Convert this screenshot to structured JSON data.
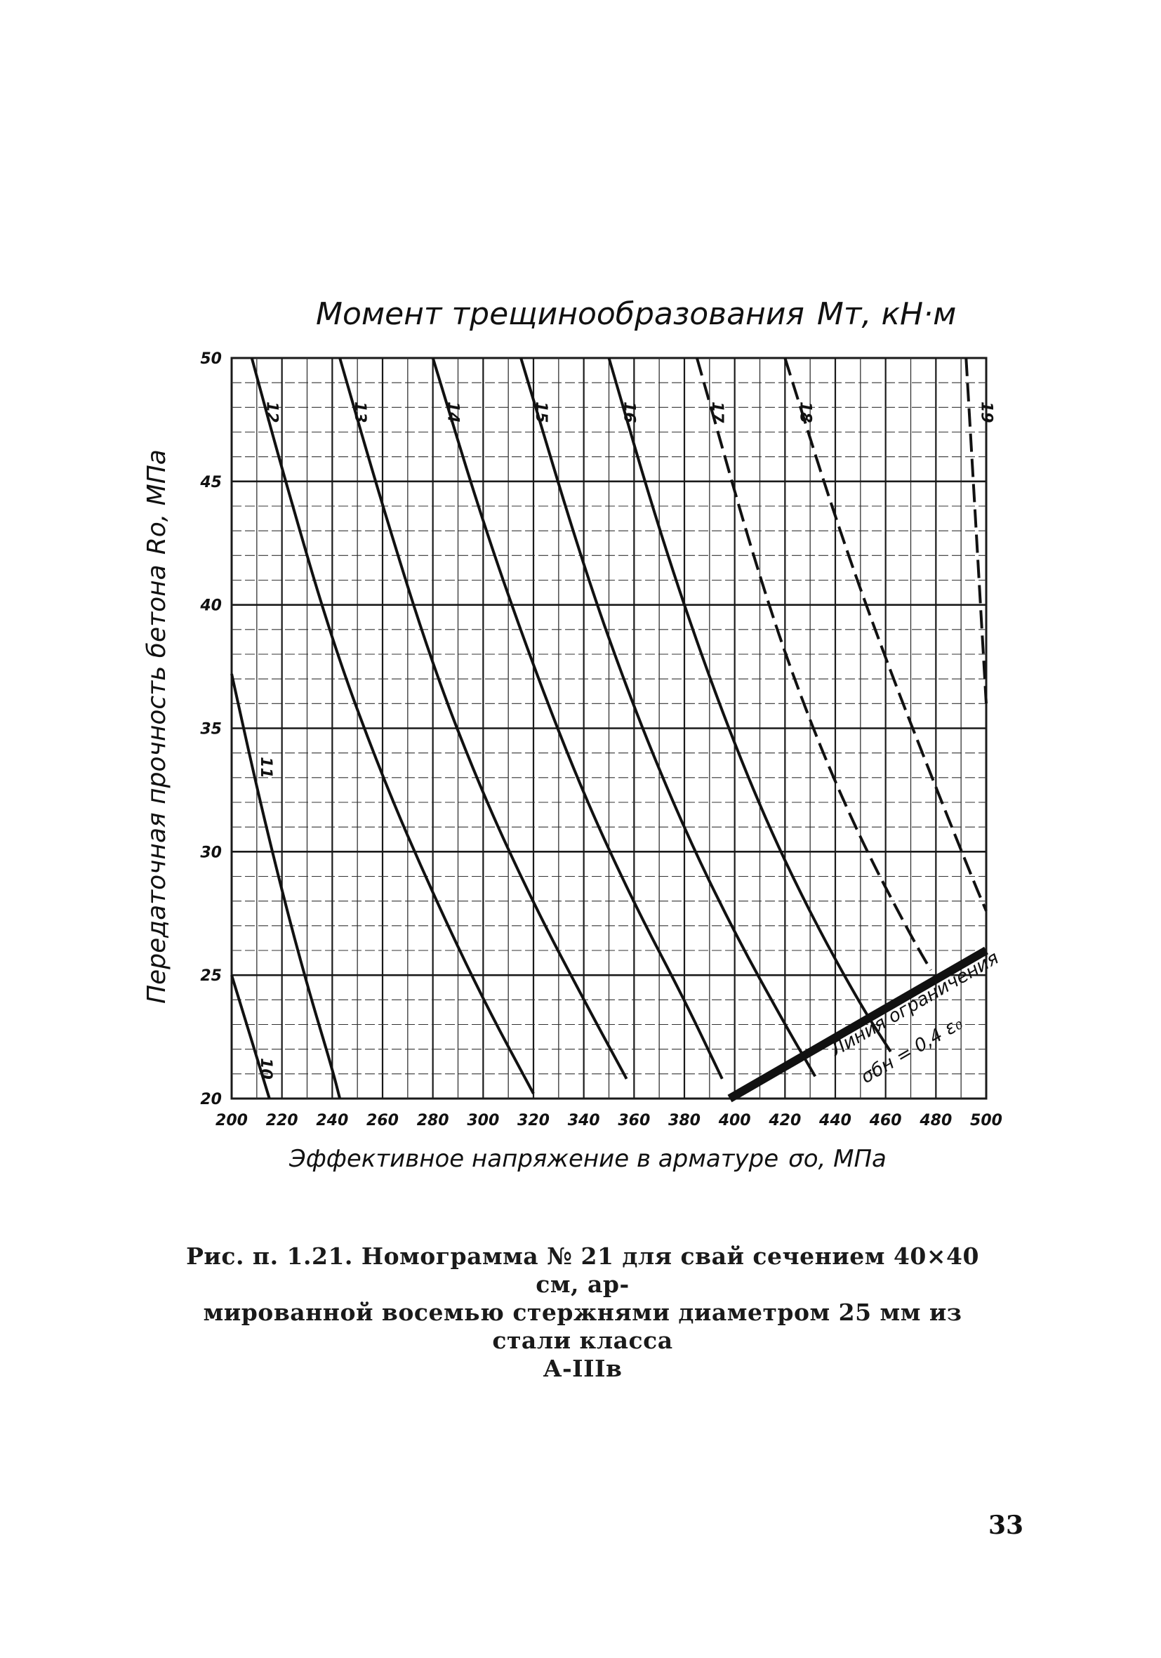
{
  "chart_data": {
    "type": "line",
    "title": "Момент трещинообразования",
    "title_symbol": "Mт, кН·м",
    "xlabel": "Эффективное напряжение в арматуре",
    "xlabel_symbol": "σo, МПа",
    "ylabel": "Передаточная прочность бетона",
    "ylabel_symbol": "Ro, МПа",
    "xlim": [
      200,
      500
    ],
    "ylim": [
      20,
      50
    ],
    "x_ticks": [
      "200",
      "220",
      "240",
      "260",
      "280",
      "300",
      "320",
      "340",
      "360",
      "380",
      "400",
      "420",
      "440",
      "460",
      "480",
      "500"
    ],
    "y_ticks": [
      "20",
      "25",
      "30",
      "35",
      "40",
      "45",
      "50"
    ],
    "grid": true,
    "series": [
      {
        "name": "10",
        "style": "solid",
        "points": [
          [
            200,
            25
          ],
          [
            215,
            20
          ]
        ]
      },
      {
        "name": "11",
        "style": "solid",
        "points": [
          [
            200,
            37.2
          ],
          [
            210,
            32.6
          ],
          [
            220,
            28.4
          ],
          [
            230,
            24.6
          ],
          [
            240,
            21.2
          ],
          [
            243,
            20
          ]
        ]
      },
      {
        "name": "12",
        "style": "solid",
        "points": [
          [
            208,
            50
          ],
          [
            220,
            45.5
          ],
          [
            240,
            38.5
          ],
          [
            260,
            33.0
          ],
          [
            280,
            28.3
          ],
          [
            300,
            24.0
          ],
          [
            320,
            20.2
          ]
        ]
      },
      {
        "name": "13",
        "style": "solid",
        "points": [
          [
            243,
            50
          ],
          [
            260,
            44.0
          ],
          [
            280,
            37.5
          ],
          [
            300,
            32.3
          ],
          [
            320,
            27.9
          ],
          [
            340,
            24.0
          ],
          [
            357,
            20.8
          ]
        ]
      },
      {
        "name": "14",
        "style": "solid",
        "points": [
          [
            280,
            50
          ],
          [
            300,
            43.3
          ],
          [
            320,
            37.5
          ],
          [
            340,
            32.3
          ],
          [
            360,
            27.9
          ],
          [
            380,
            24.0
          ],
          [
            395,
            20.8
          ]
        ]
      },
      {
        "name": "15",
        "style": "solid",
        "points": [
          [
            315,
            50
          ],
          [
            340,
            41.5
          ],
          [
            360,
            35.8
          ],
          [
            380,
            30.9
          ],
          [
            400,
            26.7
          ],
          [
            420,
            23.0
          ],
          [
            432,
            20.9
          ]
        ]
      },
      {
        "name": "16",
        "style": "solid",
        "points": [
          [
            350,
            50
          ],
          [
            370,
            43.0
          ],
          [
            390,
            37.0
          ],
          [
            410,
            31.8
          ],
          [
            430,
            27.5
          ],
          [
            450,
            23.8
          ],
          [
            462,
            21.9
          ]
        ]
      },
      {
        "name": "17",
        "style": "dashed",
        "points": [
          [
            385,
            50
          ],
          [
            410,
            41.0
          ],
          [
            430,
            35.2
          ],
          [
            450,
            30.5
          ],
          [
            470,
            26.6
          ],
          [
            478,
            25.2
          ]
        ]
      },
      {
        "name": "18",
        "style": "dashed",
        "points": [
          [
            420,
            50
          ],
          [
            440,
            43.5
          ],
          [
            460,
            37.8
          ],
          [
            480,
            32.6
          ],
          [
            495,
            28.8
          ],
          [
            500,
            27.6
          ]
        ]
      },
      {
        "name": "19",
        "style": "dashed",
        "points": [
          [
            492,
            50
          ],
          [
            500,
            36.0
          ]
        ]
      }
    ],
    "limit_line": {
      "name": "Линия ограничения",
      "formula": "σбн = 0,4 ε₀",
      "points": [
        [
          398,
          20
        ],
        [
          500,
          26
        ]
      ]
    },
    "curve_label_positions": "near top of each curve"
  },
  "caption": {
    "line1": "Рис. п. 1.21. Номограмма № 21 для свай сечением 40×40 см, ар-",
    "line2": "мированной восемью стержнями диаметром 25 мм из стали класса",
    "line3": "А-IIIв"
  },
  "page_number": "33",
  "colors": {
    "ink": "#111111",
    "grid_major": "#1a1a1a",
    "grid_minor": "#333333",
    "paper": "#ffffff"
  }
}
